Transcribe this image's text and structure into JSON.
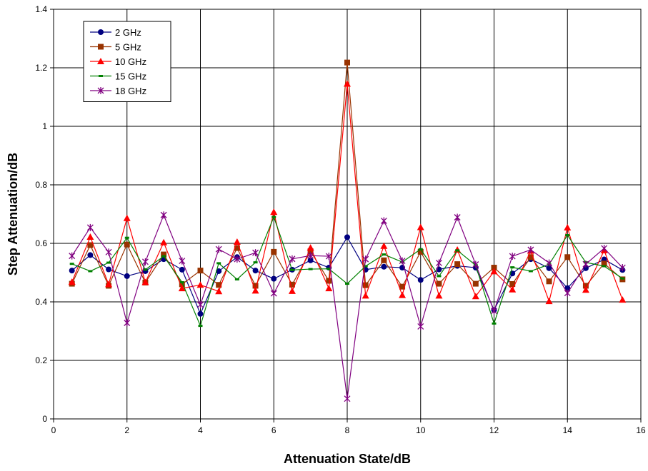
{
  "chart_data": {
    "type": "line",
    "title": "",
    "xlabel": "Attenuation State/dB",
    "ylabel": "Step Attenuation/dB",
    "xlim": [
      0,
      16
    ],
    "ylim": [
      0,
      1.4
    ],
    "xticks": [
      0,
      2,
      4,
      6,
      8,
      10,
      12,
      14,
      16
    ],
    "yticks": [
      0,
      0.2,
      0.4,
      0.6,
      0.8,
      1,
      1.2,
      1.4
    ],
    "ytick_labels": [
      "0",
      "0.2",
      "0.4",
      "0.6",
      "0.8",
      "1",
      "1.2",
      "1.4"
    ],
    "grid": true,
    "legend_position": "top-left",
    "x": [
      0.5,
      1,
      1.5,
      2,
      2.5,
      3,
      3.5,
      4,
      4.5,
      5,
      5.5,
      6,
      6.5,
      7,
      7.5,
      8,
      8.5,
      9,
      9.5,
      10,
      10.5,
      11,
      11.5,
      12,
      12.5,
      13,
      13.5,
      14,
      14.5,
      15,
      15.5
    ],
    "series": [
      {
        "name": "2 GHz",
        "color": "#000080",
        "marker": "circle",
        "values": [
          0.507,
          0.56,
          0.511,
          0.488,
          0.505,
          0.546,
          0.51,
          0.359,
          0.505,
          0.553,
          0.507,
          0.479,
          0.51,
          0.542,
          0.517,
          0.621,
          0.51,
          0.52,
          0.517,
          0.475,
          0.511,
          0.523,
          0.517,
          0.372,
          0.497,
          0.546,
          0.515,
          0.447,
          0.515,
          0.545,
          0.509
        ]
      },
      {
        "name": "5 GHz",
        "color": "#993300",
        "marker": "square",
        "values": [
          0.462,
          0.594,
          0.455,
          0.596,
          0.466,
          0.562,
          0.46,
          0.507,
          0.458,
          0.584,
          0.455,
          0.571,
          0.459,
          0.573,
          0.472,
          1.218,
          0.457,
          0.542,
          0.452,
          0.571,
          0.462,
          0.529,
          0.462,
          0.517,
          0.461,
          0.553,
          0.47,
          0.553,
          0.455,
          0.531,
          0.477
        ]
      },
      {
        "name": "10 GHz",
        "color": "#ff0000",
        "marker": "triangle",
        "values": [
          0.468,
          0.622,
          0.46,
          0.686,
          0.467,
          0.603,
          0.446,
          0.458,
          0.436,
          0.605,
          0.438,
          0.707,
          0.437,
          0.585,
          0.446,
          1.145,
          0.421,
          0.591,
          0.423,
          0.655,
          0.421,
          0.578,
          0.419,
          0.504,
          0.442,
          0.574,
          0.402,
          0.654,
          0.441,
          0.576,
          0.407
        ]
      },
      {
        "name": "15 GHz",
        "color": "#008000",
        "marker": "dash",
        "values": [
          0.53,
          0.505,
          0.534,
          0.619,
          0.51,
          0.556,
          0.467,
          0.318,
          0.532,
          0.477,
          0.535,
          0.69,
          0.509,
          0.512,
          0.513,
          0.462,
          0.522,
          0.562,
          0.536,
          0.58,
          0.488,
          0.576,
          0.525,
          0.326,
          0.518,
          0.505,
          0.528,
          0.628,
          0.535,
          0.522,
          0.48
        ]
      },
      {
        "name": "18 GHz",
        "color": "#800080",
        "marker": "star",
        "values": [
          0.557,
          0.654,
          0.57,
          0.328,
          0.537,
          0.697,
          0.54,
          0.39,
          0.58,
          0.546,
          0.568,
          0.429,
          0.547,
          0.558,
          0.556,
          0.069,
          0.546,
          0.677,
          0.54,
          0.316,
          0.533,
          0.689,
          0.528,
          0.369,
          0.556,
          0.578,
          0.533,
          0.43,
          0.529,
          0.583,
          0.517
        ]
      }
    ]
  }
}
